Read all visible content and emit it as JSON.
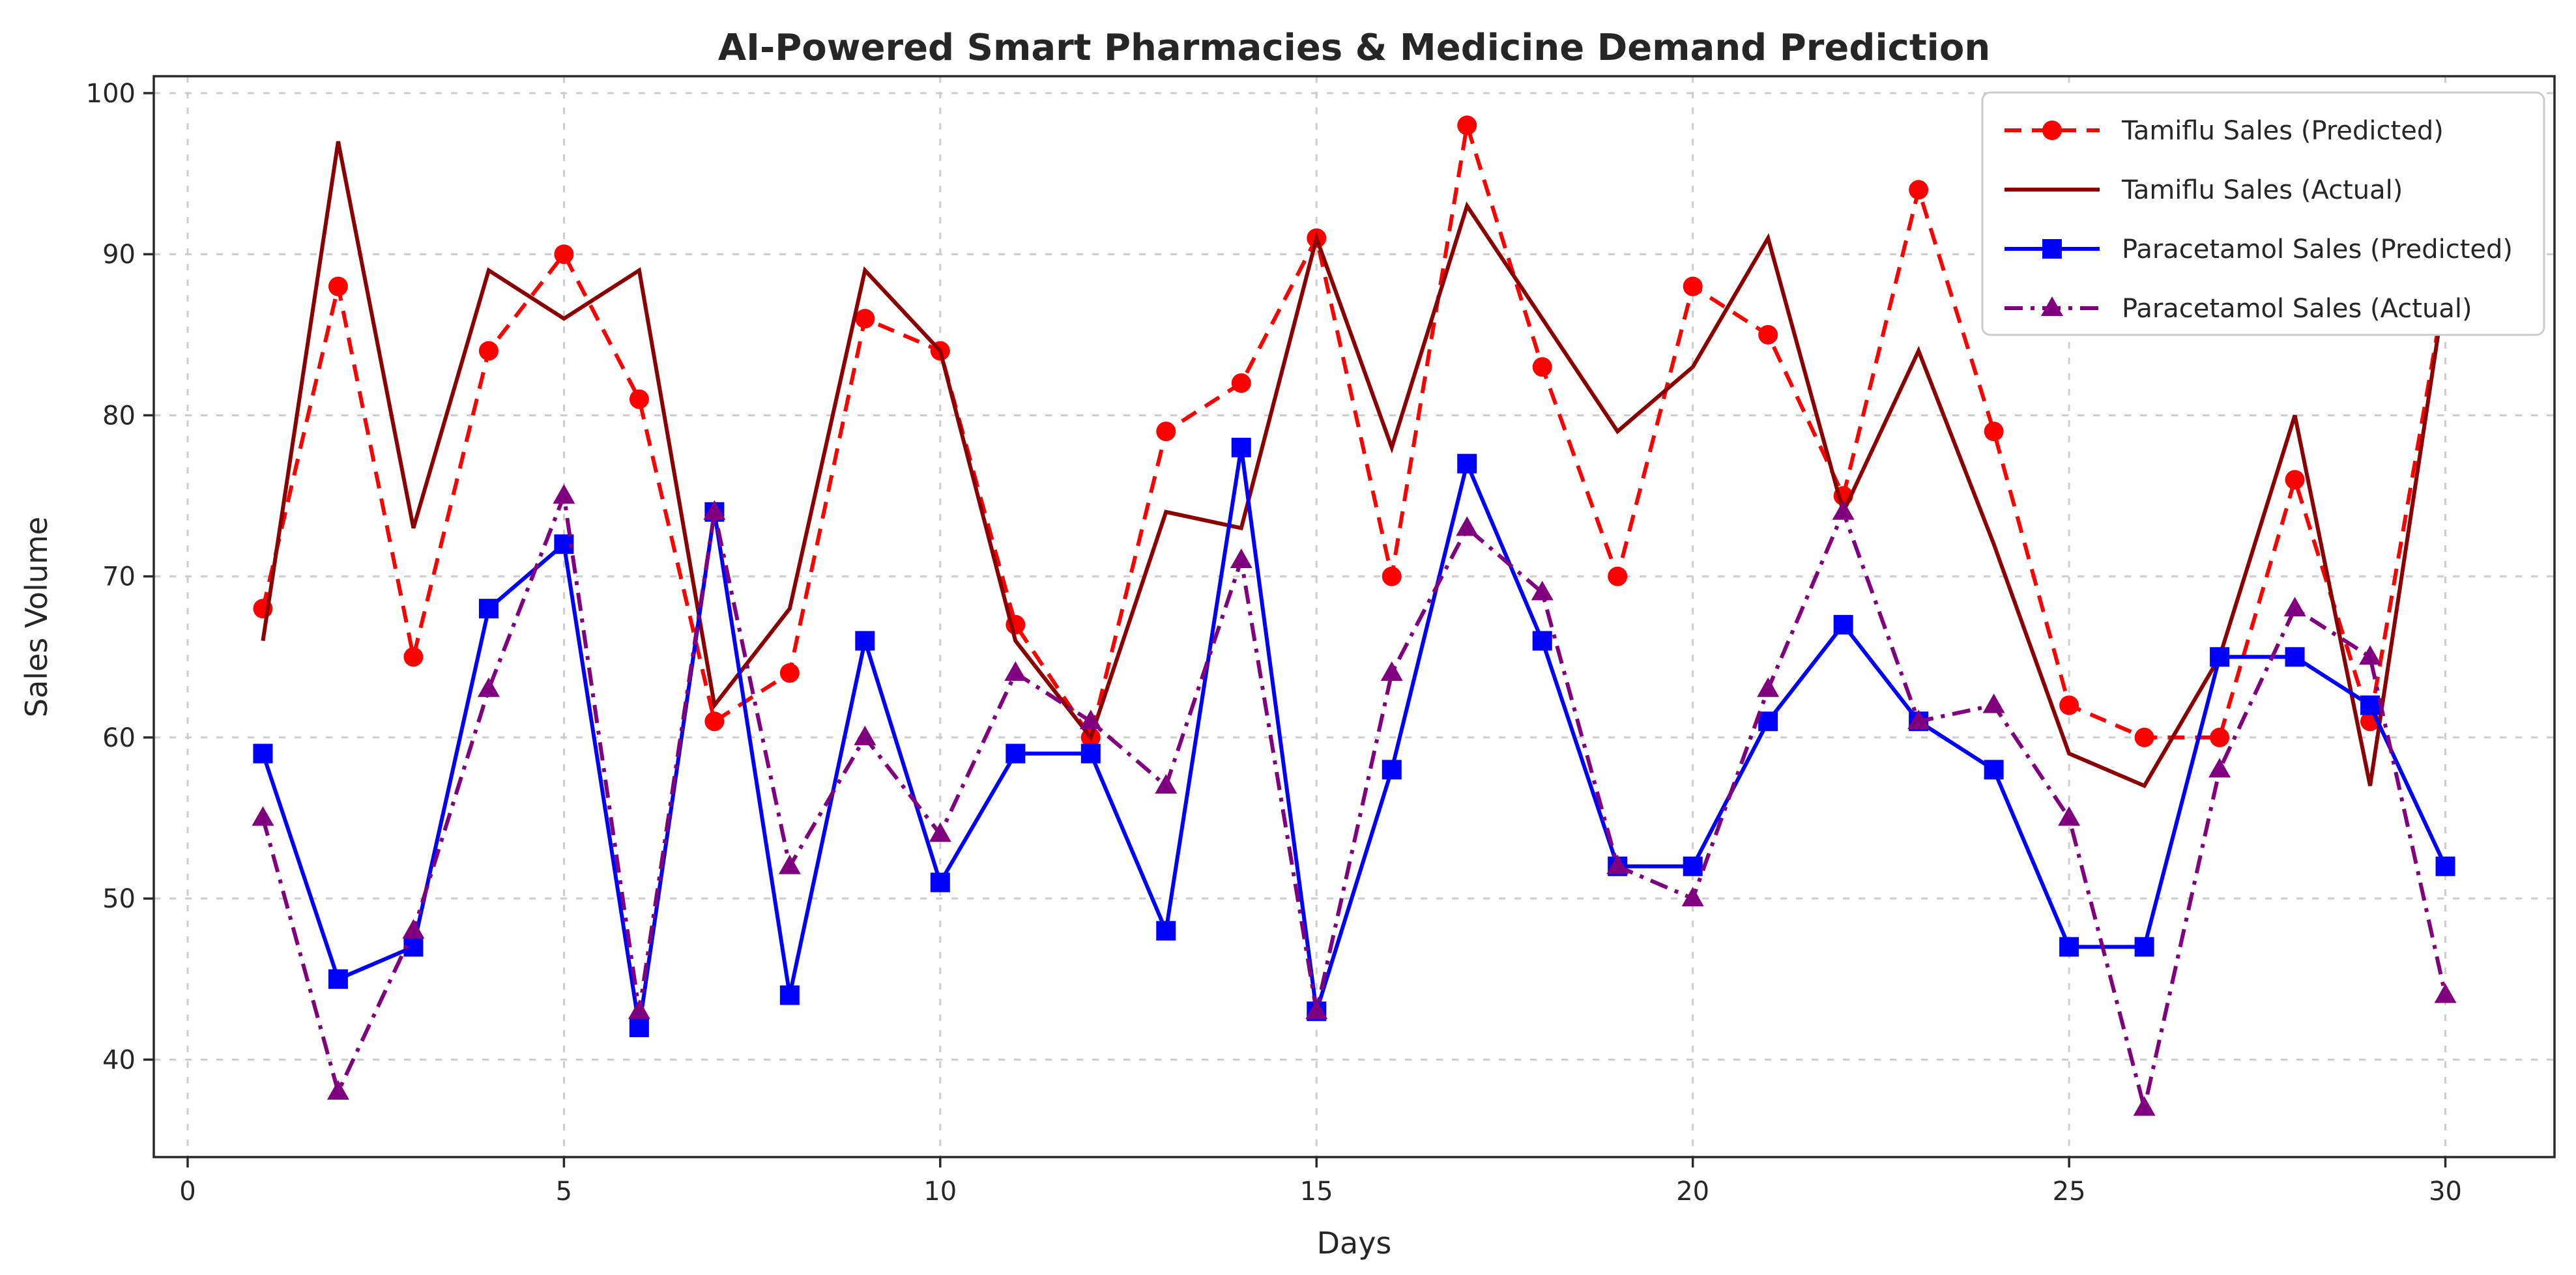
{
  "chart_data": {
    "type": "line",
    "title": "AI-Powered Smart Pharmacies & Medicine Demand Prediction",
    "xlabel": "Days",
    "ylabel": "Sales Volume",
    "x": [
      1,
      2,
      3,
      4,
      5,
      6,
      7,
      8,
      9,
      10,
      11,
      12,
      13,
      14,
      15,
      16,
      17,
      18,
      19,
      20,
      21,
      22,
      23,
      24,
      25,
      26,
      27,
      28,
      29,
      30
    ],
    "xticks": [
      0,
      5,
      10,
      15,
      20,
      25,
      30
    ],
    "yticks": [
      40,
      50,
      60,
      70,
      80,
      90,
      100
    ],
    "xlim": [
      -0.45,
      31.45
    ],
    "ylim": [
      33.95,
      101.05
    ],
    "grid": true,
    "grid_style": "dashed",
    "legend_position": "upper right",
    "background_color": "#ffffff",
    "grid_color": "#cccccc",
    "spine_color": "#2a2a2a",
    "text_color": "#262626",
    "series": [
      {
        "name": "Tamiflu Sales (Predicted)",
        "color": "#ff0000",
        "line_style": "dashed",
        "marker": "circle",
        "values": [
          68,
          88,
          65,
          84,
          90,
          81,
          61,
          64,
          86,
          84,
          67,
          60,
          79,
          82,
          91,
          70,
          98,
          83,
          70,
          88,
          85,
          75,
          94,
          79,
          62,
          60,
          60,
          76,
          61,
          88
        ]
      },
      {
        "name": "Tamiflu Sales (Actual)",
        "color": "#8b0000",
        "line_style": "solid",
        "marker": "none",
        "values": [
          66,
          97,
          73,
          89,
          86,
          89,
          62,
          68,
          89,
          84,
          66,
          60,
          74,
          73,
          91,
          78,
          93,
          86,
          79,
          83,
          91,
          74,
          84,
          72,
          59,
          57,
          65,
          80,
          57,
          88
        ]
      },
      {
        "name": "Paracetamol Sales (Predicted)",
        "color": "#0000ff",
        "line_style": "solid",
        "marker": "square",
        "values": [
          59,
          45,
          47,
          68,
          72,
          42,
          74,
          44,
          66,
          51,
          59,
          59,
          48,
          78,
          43,
          58,
          77,
          66,
          52,
          52,
          61,
          67,
          61,
          58,
          47,
          47,
          65,
          65,
          62,
          52
        ]
      },
      {
        "name": "Paracetamol Sales (Actual)",
        "color": "#800080",
        "line_style": "dashdot",
        "marker": "triangle",
        "values": [
          55,
          38,
          48,
          63,
          75,
          43,
          74,
          52,
          60,
          54,
          64,
          61,
          57,
          71,
          43,
          64,
          73,
          69,
          52,
          50,
          63,
          74,
          61,
          62,
          55,
          37,
          58,
          68,
          65,
          44
        ]
      }
    ]
  }
}
